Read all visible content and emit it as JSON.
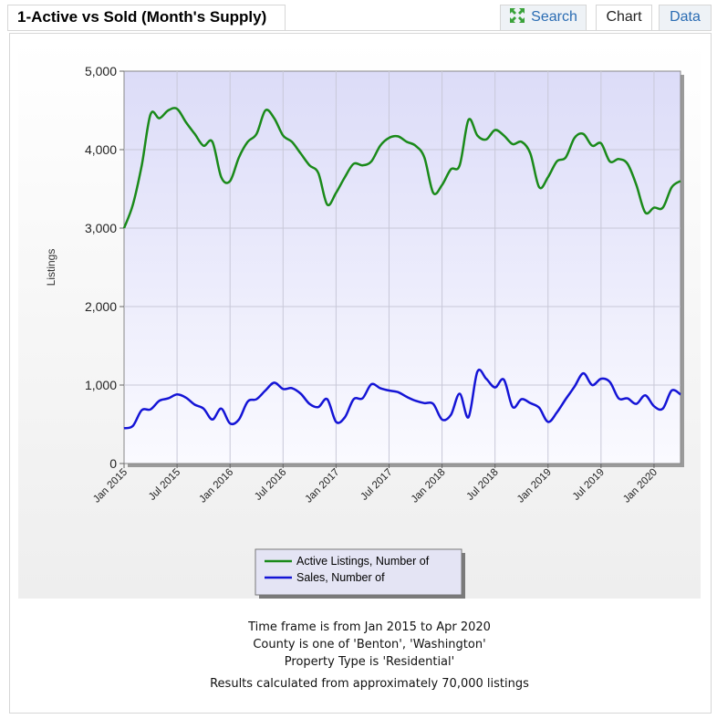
{
  "header": {
    "title": "1-Active vs Sold (Month's Supply)",
    "tabs": {
      "search": "Search",
      "chart": "Chart",
      "data": "Data"
    },
    "search_icon": "expand-arrows-icon"
  },
  "chart_data": {
    "type": "line",
    "ylabel": "Listings",
    "xlabel": "",
    "ylim": [
      0,
      5000
    ],
    "yticks": [
      0,
      1000,
      2000,
      3000,
      4000,
      5000
    ],
    "ytick_labels": [
      "0",
      "1,000",
      "2,000",
      "3,000",
      "4,000",
      "5,000"
    ],
    "xlim": [
      "Jan 2015",
      "Apr 2020"
    ],
    "xtick_labels": [
      "Jan 2015",
      "Jul 2015",
      "Jan 2016",
      "Jul 2016",
      "Jan 2017",
      "Jul 2017",
      "Jan 2018",
      "Jul 2018",
      "Jan 2019",
      "Jul 2019",
      "Jan 2020"
    ],
    "grid": true,
    "legend_position": "bottom",
    "x": [
      "Jan 2015",
      "Feb 2015",
      "Mar 2015",
      "Apr 2015",
      "May 2015",
      "Jun 2015",
      "Jul 2015",
      "Aug 2015",
      "Sep 2015",
      "Oct 2015",
      "Nov 2015",
      "Dec 2015",
      "Jan 2016",
      "Feb 2016",
      "Mar 2016",
      "Apr 2016",
      "May 2016",
      "Jun 2016",
      "Jul 2016",
      "Aug 2016",
      "Sep 2016",
      "Oct 2016",
      "Nov 2016",
      "Dec 2016",
      "Jan 2017",
      "Feb 2017",
      "Mar 2017",
      "Apr 2017",
      "May 2017",
      "Jun 2017",
      "Jul 2017",
      "Aug 2017",
      "Sep 2017",
      "Oct 2017",
      "Nov 2017",
      "Dec 2017",
      "Jan 2018",
      "Feb 2018",
      "Mar 2018",
      "Apr 2018",
      "May 2018",
      "Jun 2018",
      "Jul 2018",
      "Aug 2018",
      "Sep 2018",
      "Oct 2018",
      "Nov 2018",
      "Dec 2018",
      "Jan 2019",
      "Feb 2019",
      "Mar 2019",
      "Apr 2019",
      "May 2019",
      "Jun 2019",
      "Jul 2019",
      "Aug 2019",
      "Sep 2019",
      "Oct 2019",
      "Nov 2019",
      "Dec 2019",
      "Jan 2020",
      "Feb 2020",
      "Mar 2020",
      "Apr 2020"
    ],
    "series": [
      {
        "name": "Active Listings, Number of",
        "color": "#1a8a1a",
        "values": [
          3000,
          3300,
          3800,
          4450,
          4400,
          4500,
          4520,
          4350,
          4200,
          4050,
          4100,
          3650,
          3600,
          3900,
          4100,
          4200,
          4500,
          4400,
          4180,
          4100,
          3950,
          3800,
          3700,
          3300,
          3450,
          3650,
          3820,
          3800,
          3850,
          4050,
          4150,
          4170,
          4100,
          4050,
          3900,
          3450,
          3550,
          3750,
          3800,
          4380,
          4180,
          4130,
          4250,
          4180,
          4070,
          4100,
          3950,
          3520,
          3650,
          3850,
          3900,
          4150,
          4200,
          4050,
          4080,
          3850,
          3880,
          3820,
          3550,
          3200,
          3260,
          3260,
          3520,
          3600
        ]
      },
      {
        "name": "Sales, Number of",
        "color": "#1414d6",
        "values": [
          450,
          480,
          680,
          690,
          800,
          830,
          880,
          840,
          750,
          700,
          560,
          700,
          510,
          560,
          790,
          820,
          930,
          1030,
          950,
          960,
          890,
          760,
          720,
          820,
          530,
          590,
          820,
          830,
          1010,
          960,
          930,
          910,
          850,
          800,
          770,
          760,
          560,
          620,
          890,
          590,
          1170,
          1080,
          970,
          1070,
          720,
          820,
          770,
          710,
          530,
          650,
          820,
          980,
          1150,
          1000,
          1080,
          1040,
          830,
          830,
          760,
          870,
          730,
          700,
          930,
          880
        ]
      }
    ]
  },
  "captions": {
    "timeframe": "Time frame is from Jan 2015 to Apr 2020",
    "county": "County is one of 'Benton', 'Washington'",
    "property_type": "Property Type is 'Residential'",
    "results": "Results calculated from approximately 70,000 listings"
  }
}
